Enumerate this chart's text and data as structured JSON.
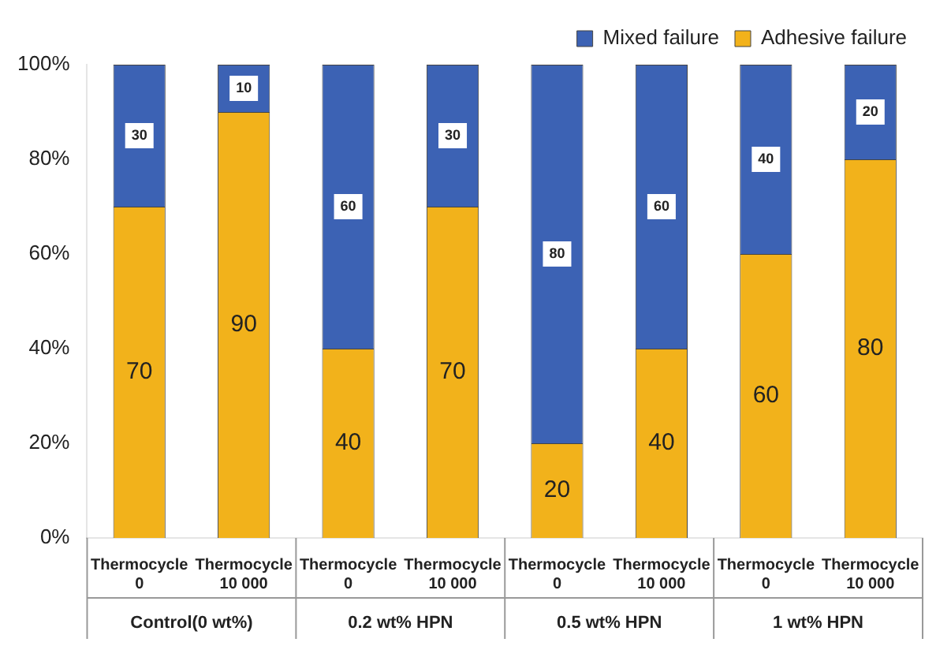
{
  "chart_data": {
    "type": "bar",
    "stacked": true,
    "categories": [
      "Thermocycle 0",
      "Thermocycle 10 000",
      "Thermocycle 0",
      "Thermocycle 10 000",
      "Thermocycle 0",
      "Thermocycle 10 000",
      "Thermocycle 0",
      "Thermocycle 10 000"
    ],
    "series": [
      {
        "name": "Adhesive failure",
        "color": "#f2b21b",
        "values": [
          70,
          90,
          40,
          70,
          20,
          40,
          60,
          80
        ]
      },
      {
        "name": "Mixed failure",
        "color": "#3c62b4",
        "values": [
          30,
          10,
          60,
          30,
          80,
          60,
          40,
          20
        ]
      }
    ],
    "ylim": [
      0,
      100
    ],
    "yticks": [
      {
        "value": 0,
        "label": "0%"
      },
      {
        "value": 20,
        "label": "20%"
      },
      {
        "value": 40,
        "label": "40%"
      },
      {
        "value": 60,
        "label": "60%"
      },
      {
        "value": 80,
        "label": "80%"
      },
      {
        "value": 100,
        "label": "100%"
      }
    ],
    "annotations": [
      "Control(0 wt%)",
      "0.2 wt% HPN",
      "0.5 wt% HPN",
      "1 wt% HPN"
    ],
    "data_labels": true,
    "legend": "top right"
  }
}
